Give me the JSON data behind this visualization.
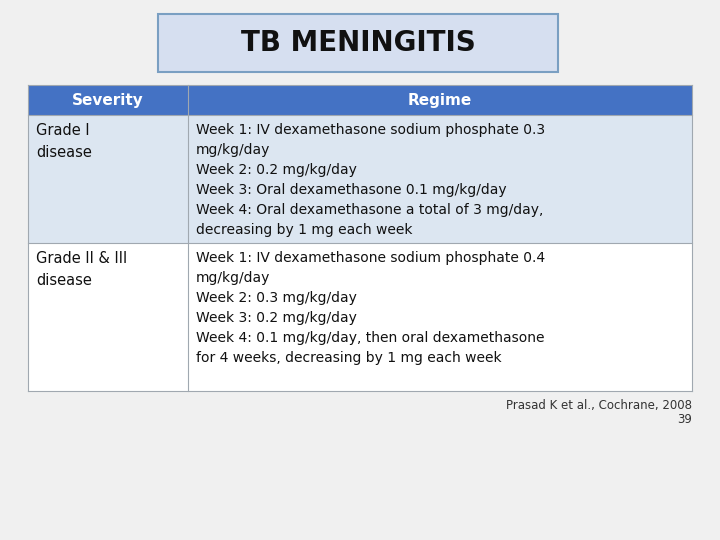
{
  "title": "TB MENINGITIS",
  "title_box_color": "#d6dff0",
  "title_border_color": "#7a9fc2",
  "header_bg": "#4472c4",
  "header_text_color": "#ffffff",
  "row1_bg": "#dce6f1",
  "row2_bg": "#ffffff",
  "col1_header": "Severity",
  "col2_header": "Regime",
  "row1_col1": "Grade I\ndisease",
  "row1_col2": "Week 1: IV dexamethasone sodium phosphate 0.3\nmg/kg/day\nWeek 2: 0.2 mg/kg/day\nWeek 3: Oral dexamethasone 0.1 mg/kg/day\nWeek 4: Oral dexamethasone a total of 3 mg/day,\ndecreasing by 1 mg each week",
  "row2_col1": "Grade II & III\ndisease",
  "row2_col2": "Week 1: IV dexamethasone sodium phosphate 0.4\nmg/kg/day\nWeek 2: 0.3 mg/kg/day\nWeek 3: 0.2 mg/kg/day\nWeek 4: 0.1 mg/kg/day, then oral dexamethasone\nfor 4 weeks, decreasing by 1 mg each week",
  "footnote": "Prasad K et al., Cochrane, 2008",
  "page_number": "39",
  "bg_color": "#f0f0f0"
}
